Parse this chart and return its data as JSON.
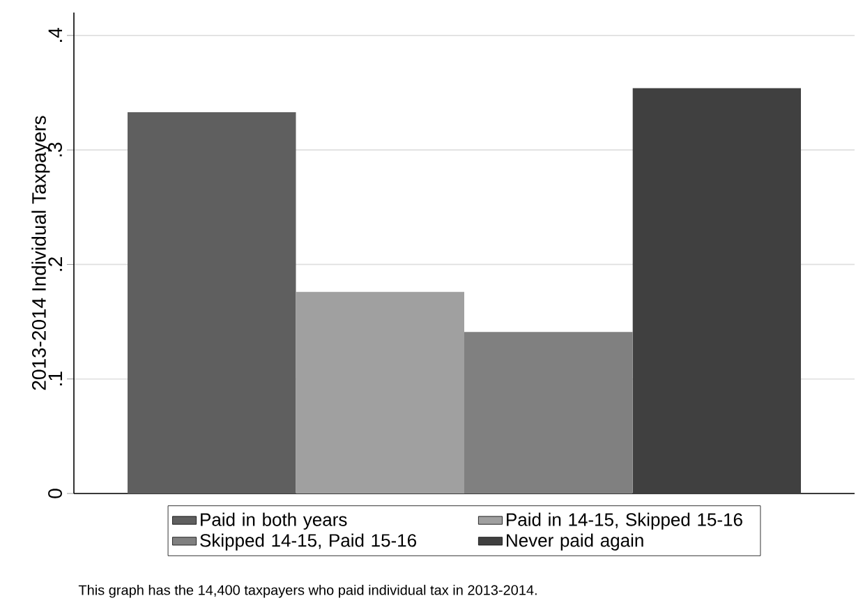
{
  "chart_data": {
    "type": "bar",
    "ylabel": "2013-2014 Individual Taxpayers",
    "categories": [
      null
    ],
    "series": [
      {
        "name": "Paid in both years",
        "color": "#5f5f5f",
        "values": [
          0.333
        ]
      },
      {
        "name": "Paid in 14-15, Skipped 15-16",
        "color": "#a0a0a0",
        "values": [
          0.176
        ]
      },
      {
        "name": "Skipped 14-15, Paid 15-16",
        "color": "#808080",
        "values": [
          0.141
        ]
      },
      {
        "name": "Never paid again",
        "color": "#404040",
        "values": [
          0.354
        ]
      }
    ],
    "ylim": [
      0,
      0.42
    ],
    "yticks": [
      0,
      {
        "value": 0.1,
        "label": ".1"
      },
      {
        "value": 0.2,
        "label": ".2"
      },
      {
        "value": 0.3,
        "label": ".3"
      },
      {
        "value": 0.4,
        "label": ".4"
      }
    ],
    "grid": "y",
    "legend": "bottom",
    "annotations": [
      "This graph has the 14,400 taxpayers who paid individual tax in 2013-2014."
    ]
  }
}
